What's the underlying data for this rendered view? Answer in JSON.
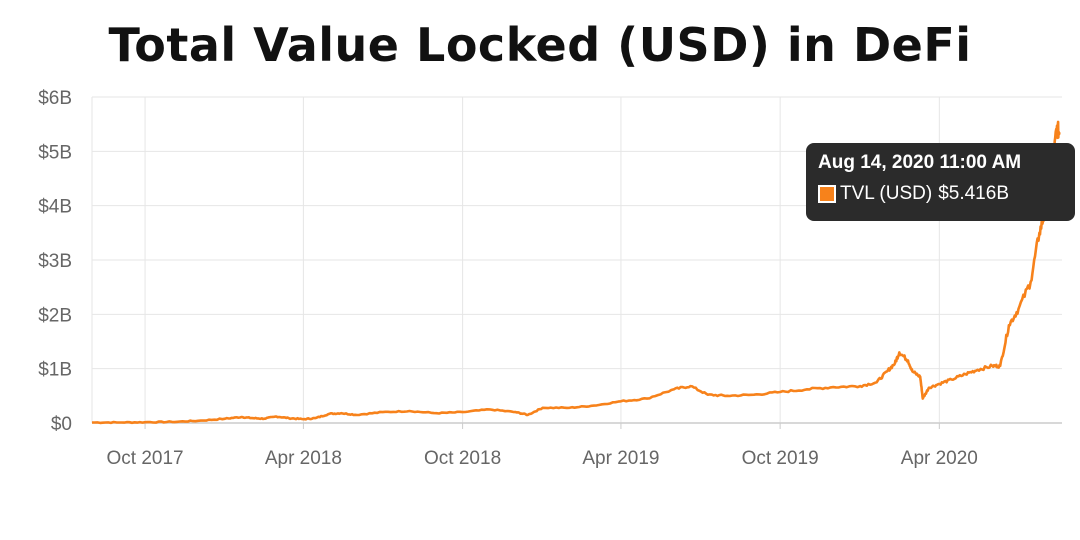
{
  "chart_data": {
    "type": "line",
    "title": "Total Value Locked (USD) in DeFi",
    "xlabel": "",
    "ylabel": "",
    "grid": true,
    "x_tick_labels": [
      "Oct 2017",
      "Apr 2018",
      "Oct 2018",
      "Apr 2019",
      "Oct 2019",
      "Apr 2020"
    ],
    "x_tick_dates": [
      "2017-10-01",
      "2018-04-01",
      "2018-10-01",
      "2019-04-01",
      "2019-10-01",
      "2020-04-01"
    ],
    "xlim": [
      "2017-08-01",
      "2020-08-20"
    ],
    "y_tick_labels": [
      "$0",
      "$1B",
      "$2B",
      "$3B",
      "$4B",
      "$5B",
      "$6B"
    ],
    "y_ticks": [
      0,
      1,
      2,
      3,
      4,
      5,
      6
    ],
    "ylim": [
      0,
      6
    ],
    "y_unit": "B USD",
    "series": [
      {
        "name": "TVL (USD)",
        "color": "#f7821b",
        "x": [
          "2017-08-01",
          "2017-09-01",
          "2017-10-01",
          "2017-11-01",
          "2017-12-01",
          "2018-01-01",
          "2018-01-20",
          "2018-02-01",
          "2018-02-15",
          "2018-03-01",
          "2018-03-15",
          "2018-04-01",
          "2018-04-15",
          "2018-05-01",
          "2018-05-15",
          "2018-06-01",
          "2018-07-01",
          "2018-08-01",
          "2018-09-01",
          "2018-10-01",
          "2018-11-01",
          "2018-12-01",
          "2018-12-15",
          "2019-01-01",
          "2019-02-01",
          "2019-03-01",
          "2019-04-01",
          "2019-05-01",
          "2019-06-01",
          "2019-06-20",
          "2019-07-10",
          "2019-08-01",
          "2019-09-01",
          "2019-10-01",
          "2019-11-01",
          "2019-12-01",
          "2020-01-01",
          "2020-01-20",
          "2020-02-01",
          "2020-02-10",
          "2020-02-15",
          "2020-02-25",
          "2020-03-01",
          "2020-03-10",
          "2020-03-13",
          "2020-03-20",
          "2020-04-01",
          "2020-04-15",
          "2020-05-01",
          "2020-05-15",
          "2020-06-01",
          "2020-06-10",
          "2020-06-20",
          "2020-07-01",
          "2020-07-15",
          "2020-07-25",
          "2020-08-01",
          "2020-08-08",
          "2020-08-14",
          "2020-08-17"
        ],
        "values": [
          0.01,
          0.01,
          0.015,
          0.02,
          0.04,
          0.08,
          0.11,
          0.09,
          0.08,
          0.12,
          0.09,
          0.07,
          0.09,
          0.17,
          0.18,
          0.15,
          0.2,
          0.22,
          0.18,
          0.2,
          0.25,
          0.2,
          0.15,
          0.28,
          0.28,
          0.32,
          0.4,
          0.45,
          0.62,
          0.68,
          0.52,
          0.5,
          0.52,
          0.57,
          0.62,
          0.66,
          0.68,
          0.75,
          0.95,
          1.1,
          1.3,
          1.15,
          0.95,
          0.85,
          0.45,
          0.65,
          0.72,
          0.8,
          0.9,
          0.98,
          1.05,
          1.05,
          1.8,
          2.1,
          2.6,
          3.5,
          3.9,
          4.6,
          5.416,
          5.35
        ]
      }
    ],
    "tooltip": {
      "date": "Aug 14, 2020 11:00 AM",
      "series": "TVL (USD)",
      "value": "$5.416B"
    }
  }
}
